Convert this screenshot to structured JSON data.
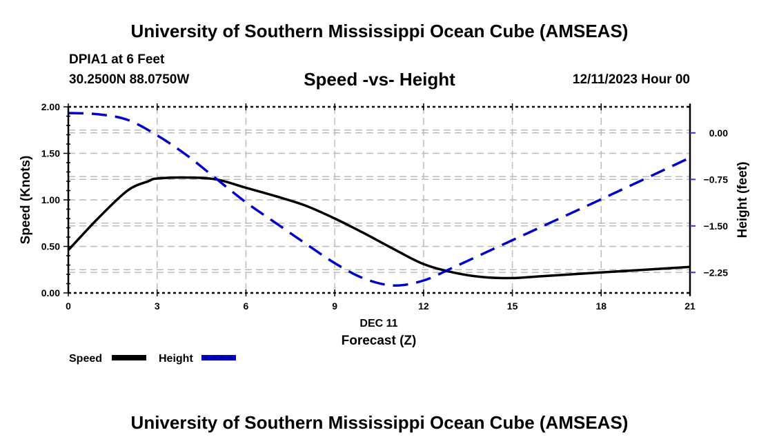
{
  "header": {
    "title": "University of Southern Mississippi Ocean Cube (AMSEAS)",
    "station": "DPIA1 at 6 Feet",
    "coordinates": "30.2500N  88.0750W",
    "subtitle": "Speed -vs- Height",
    "datetime": "12/11/2023 Hour 00"
  },
  "footer": {
    "title": "University of Southern Mississippi Ocean Cube (AMSEAS)"
  },
  "chart_data": {
    "type": "line",
    "title": "Speed -vs- Height",
    "xlabel": "Forecast (Z)",
    "xsublabel": "DEC 11",
    "ylabel": "Speed (Knots)",
    "y2label": "Height (feet)",
    "xlim": [
      0,
      21
    ],
    "ylim": [
      0,
      2.0
    ],
    "y2lim": [
      -2.58,
      0.42
    ],
    "x_ticks": [
      0,
      3,
      6,
      9,
      12,
      15,
      18,
      21
    ],
    "x_tick_labels": [
      "0",
      "3",
      "6",
      "9",
      "12",
      "15",
      "18",
      "21"
    ],
    "y_ticks": [
      0,
      0.5,
      1.0,
      1.5,
      2.0
    ],
    "y_tick_labels": [
      "0.00",
      "0.50",
      "1.00",
      "1.50",
      "2.00"
    ],
    "y2_ticks": [
      0,
      -0.75,
      -1.5,
      -2.25
    ],
    "y2_tick_labels": [
      "0.00",
      "−0.75",
      "−1.50",
      "−2.25"
    ],
    "grid": true,
    "legend_position": "bottom-left",
    "series": [
      {
        "name": "Speed",
        "axis": "left",
        "style": "solid",
        "color": "#000000",
        "x": [
          0,
          1,
          2,
          2.7,
          3,
          4,
          5,
          6,
          7,
          8,
          9,
          10,
          11,
          12,
          13,
          14,
          15,
          16,
          18,
          21
        ],
        "values": [
          0.46,
          0.8,
          1.1,
          1.2,
          1.23,
          1.24,
          1.22,
          1.13,
          1.04,
          0.94,
          0.8,
          0.64,
          0.47,
          0.31,
          0.22,
          0.17,
          0.16,
          0.18,
          0.22,
          0.28
        ]
      },
      {
        "name": "Height",
        "axis": "right",
        "style": "dashed",
        "color": "#0000cc",
        "x": [
          0,
          1,
          2,
          3,
          4,
          5,
          6,
          7,
          8,
          9,
          10,
          11,
          12,
          13,
          14,
          15,
          16,
          18,
          21
        ],
        "values": [
          0.32,
          0.3,
          0.21,
          -0.04,
          -0.36,
          -0.74,
          -1.12,
          -1.45,
          -1.78,
          -2.1,
          -2.35,
          -2.46,
          -2.38,
          -2.17,
          -1.95,
          -1.73,
          -1.51,
          -1.07,
          -0.4
        ]
      }
    ]
  }
}
